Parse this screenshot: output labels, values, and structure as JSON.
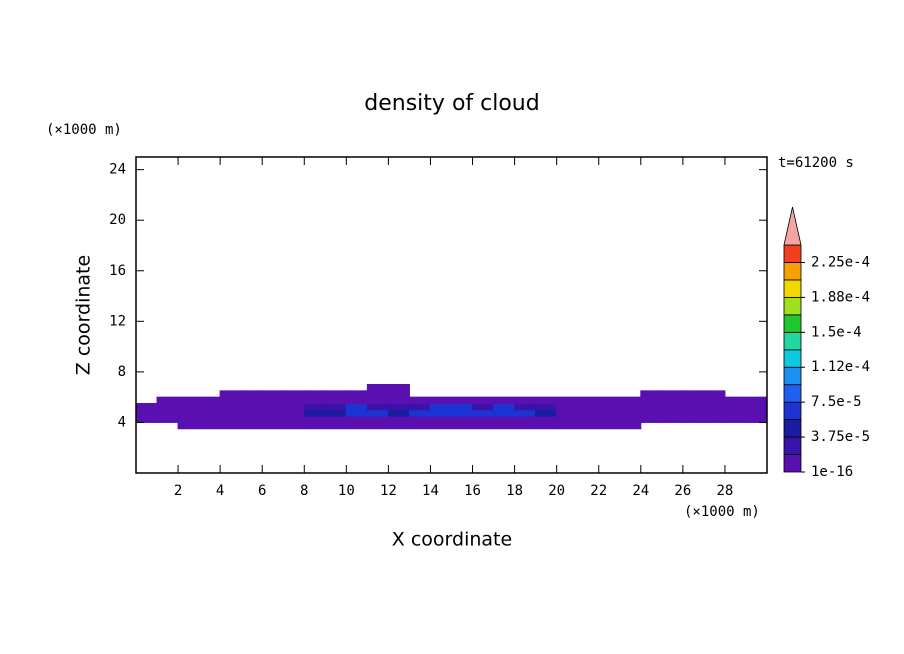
{
  "chart_data": {
    "type": "contour",
    "title": "density of cloud",
    "x_label": "X coordinate",
    "y_label": "Z coordinate",
    "x_unit": "(×1000 m)",
    "y_unit": "(×1000 m)",
    "annotation": "t=61200 s",
    "xlim": [
      0,
      30
    ],
    "ylim": [
      0,
      25
    ],
    "xticks": [
      2,
      4,
      6,
      8,
      10,
      12,
      14,
      16,
      18,
      20,
      22,
      24,
      26,
      28
    ],
    "yticks": [
      4,
      8,
      12,
      16,
      20,
      24
    ],
    "field": {
      "x": [
        0.5,
        1.5,
        2.5,
        3.5,
        4.5,
        5.5,
        6.5,
        7.5,
        8.5,
        9.5,
        10.5,
        11.5,
        12.5,
        13.5,
        14.5,
        15.5,
        16.5,
        17.5,
        18.5,
        19.5,
        20.5,
        21.5,
        22.5,
        23.5,
        24.5,
        25.5,
        26.5,
        27.5,
        28.5,
        29.5
      ],
      "z": [
        3.75,
        4.25,
        4.75,
        5.25,
        5.75,
        6.25,
        6.75
      ],
      "values": [
        [
          null,
          null,
          1e-06,
          1e-06,
          1e-06,
          1e-06,
          1e-06,
          1e-06,
          1e-06,
          1e-06,
          1e-06,
          1e-06,
          1e-06,
          1e-06,
          1e-06,
          1e-06,
          1e-06,
          1e-06,
          1e-06,
          1e-06,
          1e-06,
          1e-06,
          1e-06,
          1e-06,
          null,
          null,
          null,
          null,
          null,
          null
        ],
        [
          1e-06,
          1e-06,
          1e-06,
          1e-06,
          1e-06,
          1e-06,
          1e-06,
          1.5e-05,
          1.5e-05,
          1.5e-05,
          1.5e-05,
          1.5e-05,
          1.5e-05,
          1.5e-05,
          1.5e-05,
          1.5e-05,
          1.5e-05,
          1.5e-05,
          1.5e-05,
          1.5e-05,
          1.5e-05,
          1e-06,
          1e-06,
          1e-06,
          1e-06,
          1e-06,
          1e-06,
          1e-06,
          1e-06,
          1e-06
        ],
        [
          1e-06,
          1e-06,
          1e-06,
          1e-06,
          1e-06,
          1e-06,
          1e-06,
          1e-06,
          4e-05,
          4e-05,
          6e-05,
          6e-05,
          4e-05,
          6e-05,
          6e-05,
          6e-05,
          6e-05,
          6e-05,
          6e-05,
          4e-05,
          1e-06,
          1e-06,
          1e-06,
          1e-06,
          1e-06,
          1e-06,
          1e-06,
          1e-06,
          1e-06,
          1e-06
        ],
        [
          1e-06,
          1e-06,
          1e-06,
          1e-06,
          1e-06,
          1e-06,
          1e-06,
          1e-06,
          3e-05,
          3e-05,
          6e-05,
          3e-05,
          3e-05,
          3e-05,
          6e-05,
          6e-05,
          3e-05,
          6e-05,
          3e-05,
          3e-05,
          1e-06,
          1e-06,
          1e-06,
          1e-06,
          1e-06,
          1e-06,
          1e-06,
          1e-06,
          1e-06,
          1e-06
        ],
        [
          null,
          1e-06,
          1e-06,
          1e-06,
          1e-06,
          1e-06,
          1e-06,
          1e-06,
          1e-06,
          1e-06,
          1e-06,
          1e-06,
          1e-06,
          1e-06,
          1e-06,
          1e-06,
          1e-06,
          1e-06,
          1e-06,
          1e-06,
          1e-06,
          1e-06,
          1e-06,
          1e-06,
          1e-06,
          1e-06,
          1e-06,
          1e-06,
          1e-06,
          1e-06
        ],
        [
          null,
          null,
          null,
          null,
          1e-06,
          1e-06,
          1e-06,
          1e-06,
          1e-06,
          1e-06,
          1e-06,
          1e-06,
          1e-06,
          null,
          null,
          null,
          null,
          null,
          null,
          null,
          null,
          null,
          null,
          null,
          1e-06,
          1e-06,
          1e-06,
          1e-06,
          null,
          null
        ],
        [
          null,
          null,
          null,
          null,
          null,
          null,
          null,
          null,
          null,
          null,
          null,
          1e-06,
          1e-06,
          null,
          null,
          null,
          null,
          null,
          null,
          null,
          null,
          null,
          null,
          null,
          null,
          null,
          null,
          null,
          null,
          null
        ]
      ]
    },
    "colorbar": {
      "levels": [
        1e-16,
        1.875e-05,
        3.75e-05,
        5.625e-05,
        7.5e-05,
        9.375e-05,
        0.0001125,
        0.00013125,
        0.00015,
        0.00016875,
        0.0001875,
        0.00020625,
        0.000225,
        0.00024375
      ],
      "colors": [
        "#5a10b0",
        "#3a14a8",
        "#1c1ca0",
        "#1c34d4",
        "#1e60f0",
        "#1e90f0",
        "#10c8e0",
        "#20d8a0",
        "#20c830",
        "#a0e020",
        "#f0d800",
        "#f8a000",
        "#f04020"
      ],
      "extend_color": "#f4a4a4",
      "ticks": [
        {
          "value": 1e-16,
          "label": "1e-16"
        },
        {
          "value": 3.75e-05,
          "label": "3.75e-5"
        },
        {
          "value": 7.5e-05,
          "label": "7.5e-5"
        },
        {
          "value": 0.0001125,
          "label": "1.12e-4"
        },
        {
          "value": 0.00015,
          "label": "1.5e-4"
        },
        {
          "value": 0.0001875,
          "label": "1.88e-4"
        },
        {
          "value": 0.000225,
          "label": "2.25e-4"
        }
      ]
    }
  }
}
